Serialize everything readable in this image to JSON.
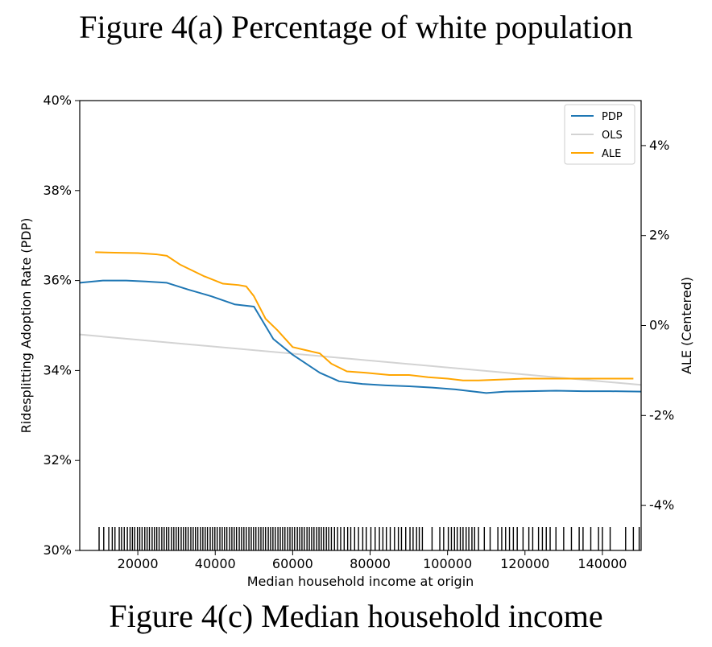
{
  "figure": {
    "top_caption": "Figure 4(a) Percentage of white population",
    "bottom_caption": "Figure 4(c) Median household income"
  },
  "chart_data": {
    "type": "line",
    "xlabel": "Median household income at origin",
    "ylabel_left": "Ridesplitting Adoption Rate (PDP)",
    "ylabel_right": "ALE (Centered)",
    "xlim": [
      5000,
      150000
    ],
    "ylim_left": [
      30,
      40
    ],
    "ylim_right": [
      -5,
      5
    ],
    "x_ticks": [
      20000,
      40000,
      60000,
      80000,
      100000,
      120000,
      140000
    ],
    "x_tick_labels": [
      "20000",
      "40000",
      "60000",
      "80000",
      "100000",
      "120000",
      "140000"
    ],
    "y_left_ticks": [
      30,
      32,
      34,
      36,
      38,
      40
    ],
    "y_left_tick_labels": [
      "30%",
      "32%",
      "34%",
      "36%",
      "38%",
      "40%"
    ],
    "y_right_ticks": [
      -4,
      -2,
      0,
      2,
      4
    ],
    "y_right_tick_labels": [
      "-4%",
      "-2%",
      "0%",
      "2%",
      "4%"
    ],
    "legend": {
      "position": "upper right",
      "entries": [
        "PDP",
        "OLS",
        "ALE"
      ]
    },
    "colors": {
      "PDP": "#1f77b4",
      "OLS": "#d3d3d3",
      "ALE": "#ffa500"
    },
    "series": [
      {
        "name": "PDP",
        "axis": "left",
        "x": [
          5000,
          11000,
          17000,
          22000,
          27500,
          33000,
          39000,
          45000,
          50000,
          55000,
          60000,
          67000,
          72000,
          78000,
          84000,
          90000,
          96000,
          102000,
          110000,
          115000,
          121000,
          128000,
          135000,
          142000,
          150000
        ],
        "y": [
          35.95,
          36.0,
          36.0,
          35.98,
          35.95,
          35.8,
          35.65,
          35.47,
          35.42,
          34.7,
          34.35,
          33.95,
          33.76,
          33.7,
          33.67,
          33.65,
          33.62,
          33.58,
          33.5,
          33.53,
          33.54,
          33.55,
          33.54,
          33.54,
          33.53
        ]
      },
      {
        "name": "OLS",
        "axis": "left",
        "x": [
          5000,
          150000
        ],
        "y": [
          34.8,
          33.68
        ]
      },
      {
        "name": "ALE",
        "axis": "right",
        "x": [
          9000,
          14000,
          20000,
          25000,
          27500,
          31000,
          37000,
          42000,
          46000,
          48000,
          50000,
          53000,
          56000,
          60000,
          65000,
          67000,
          70000,
          74000,
          79000,
          85000,
          90000,
          95000,
          100000,
          104000,
          108000,
          114000,
          120000,
          126000,
          133000,
          140000,
          148000
        ],
        "y": [
          1.63,
          1.62,
          1.61,
          1.58,
          1.55,
          1.35,
          1.1,
          0.93,
          0.9,
          0.87,
          0.65,
          0.15,
          -0.1,
          -0.48,
          -0.58,
          -0.62,
          -0.85,
          -1.02,
          -1.05,
          -1.1,
          -1.1,
          -1.15,
          -1.18,
          -1.22,
          -1.22,
          -1.2,
          -1.18,
          -1.18,
          -1.18,
          -1.18,
          -1.18
        ]
      }
    ],
    "rug_x": [
      10000,
      11200,
      12500,
      13400,
      14100,
      15200,
      15800,
      16500,
      17300,
      18000,
      18600,
      19200,
      19900,
      20500,
      21100,
      21800,
      22400,
      23000,
      23700,
      24300,
      24900,
      25500,
      26200,
      26800,
      27400,
      28000,
      28700,
      29300,
      29900,
      30500,
      31200,
      31800,
      32400,
      33000,
      33700,
      34300,
      34900,
      35500,
      36200,
      36800,
      37400,
      38000,
      38700,
      39300,
      39900,
      40500,
      41200,
      41800,
      42400,
      43000,
      43700,
      44300,
      44900,
      45500,
      46200,
      46800,
      47400,
      48000,
      48700,
      49300,
      49900,
      50500,
      51200,
      51800,
      52400,
      53000,
      53700,
      54300,
      54900,
      55500,
      56200,
      56800,
      57400,
      58000,
      58700,
      59300,
      59900,
      60500,
      61200,
      61800,
      62400,
      63000,
      63700,
      64300,
      64900,
      65500,
      66200,
      66800,
      67400,
      68000,
      68700,
      69300,
      70000,
      70800,
      71600,
      72400,
      73300,
      74200,
      75000,
      76000,
      77000,
      78100,
      79000,
      80200,
      81300,
      82400,
      83300,
      84200,
      85200,
      86300,
      87300,
      88100,
      89200,
      90300,
      91100,
      92000,
      92700,
      93500,
      96000,
      98000,
      99000,
      100200,
      101000,
      101800,
      102500,
      103300,
      104000,
      104800,
      105500,
      106300,
      107000,
      108000,
      109500,
      111000,
      113000,
      114000,
      115000,
      116000,
      117000,
      118000,
      119500,
      121000,
      122000,
      123500,
      124500,
      125500,
      126500,
      128000,
      130000,
      132000,
      134000,
      135000,
      137000,
      139000,
      140000,
      142000,
      146000,
      148000,
      149500
    ]
  }
}
